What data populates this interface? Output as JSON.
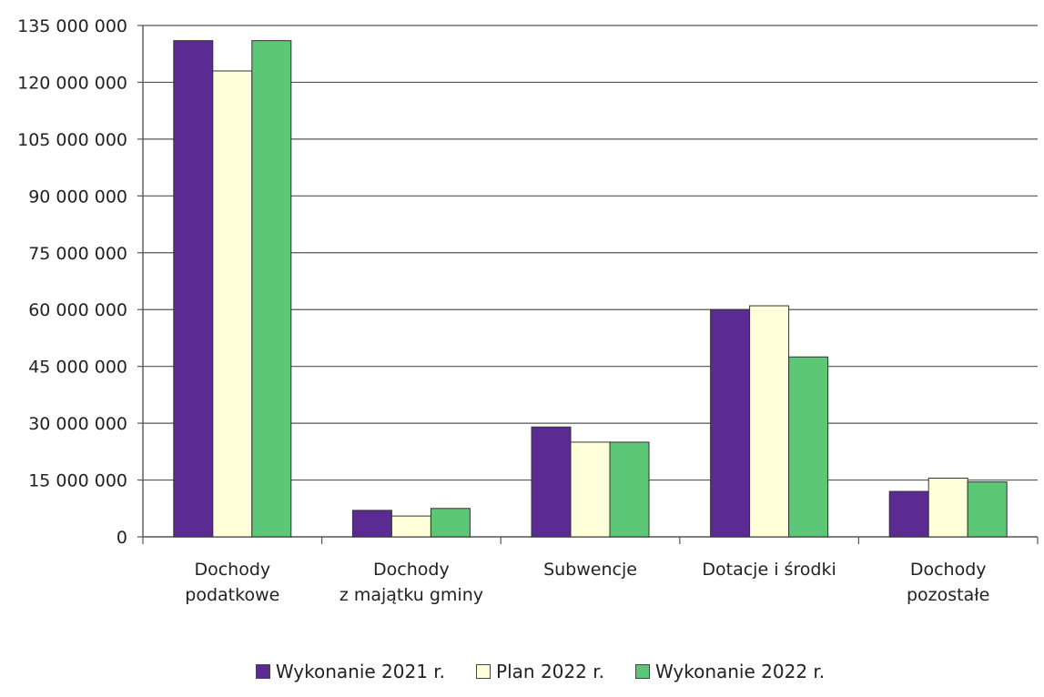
{
  "chart_data": {
    "type": "bar",
    "categories": [
      [
        "Dochody",
        "podatkowe"
      ],
      [
        "Dochody",
        "z majątku gminy"
      ],
      [
        "Subwencje"
      ],
      [
        "Dotacje i środki"
      ],
      [
        "Dochody",
        "pozostałe"
      ]
    ],
    "series": [
      {
        "name": "Wykonanie 2021 r.",
        "color": "#5B2A92",
        "values": [
          131000000,
          7000000,
          29000000,
          60000000,
          12000000
        ]
      },
      {
        "name": "Plan 2022 r.",
        "color": "#FFFFD9",
        "values": [
          123000000,
          5500000,
          25000000,
          61000000,
          15500000
        ]
      },
      {
        "name": "Wykonanie 2022 r.",
        "color": "#5CC776",
        "values": [
          131000000,
          7500000,
          25000000,
          47500000,
          14500000
        ]
      }
    ],
    "y_ticks": [
      0,
      15000000,
      30000000,
      45000000,
      60000000,
      75000000,
      90000000,
      105000000,
      120000000,
      135000000
    ],
    "y_tick_labels": [
      "0",
      "15 000 000",
      "30 000 000",
      "45 000 000",
      "60 000 000",
      "75 000 000",
      "90 000 000",
      "105 000 000",
      "120 000 000",
      "135 000 000"
    ],
    "ylim": [
      0,
      135000000
    ],
    "grid": true,
    "legend_position": "bottom",
    "title": "",
    "xlabel": "",
    "ylabel": ""
  }
}
